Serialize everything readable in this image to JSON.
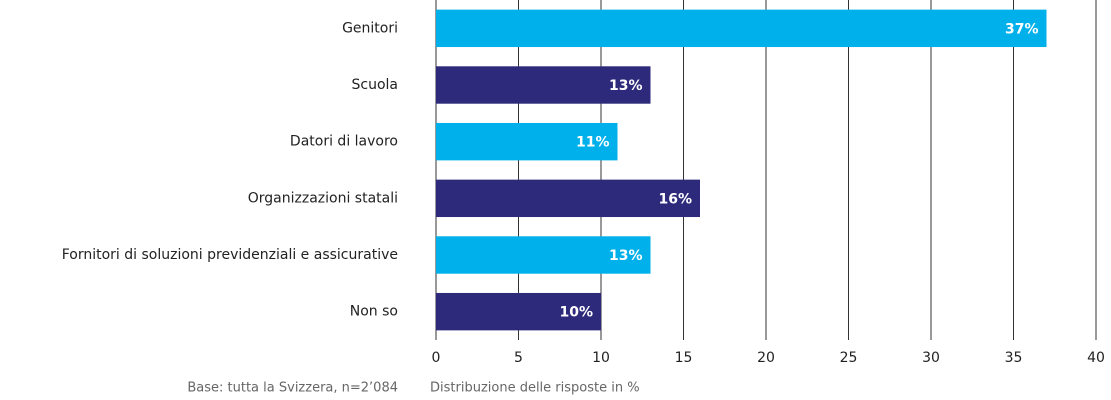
{
  "chart_data": {
    "type": "barh",
    "categories": [
      "Genitori",
      "Scuola",
      "Datori di lavoro",
      "Organizzazioni statali",
      "Fornitori di soluzioni previdenziali e assicurative",
      "Non so"
    ],
    "values": [
      37,
      13,
      11,
      16,
      13,
      10
    ],
    "value_labels": [
      "37%",
      "13%",
      "11%",
      "16%",
      "13%",
      "10%"
    ],
    "colors": [
      "#00b0ea",
      "#2d2a7c",
      "#00b0ea",
      "#2d2a7c",
      "#00b0ea",
      "#2d2a7c"
    ],
    "xlim": [
      0,
      40
    ],
    "xticks": [
      0,
      5,
      10,
      15,
      20,
      25,
      30,
      35,
      40
    ],
    "grid": true,
    "xlabel": "Distribuzione delle risposte in %",
    "note": "Base: tutta la Svizzera, n=2’084"
  }
}
